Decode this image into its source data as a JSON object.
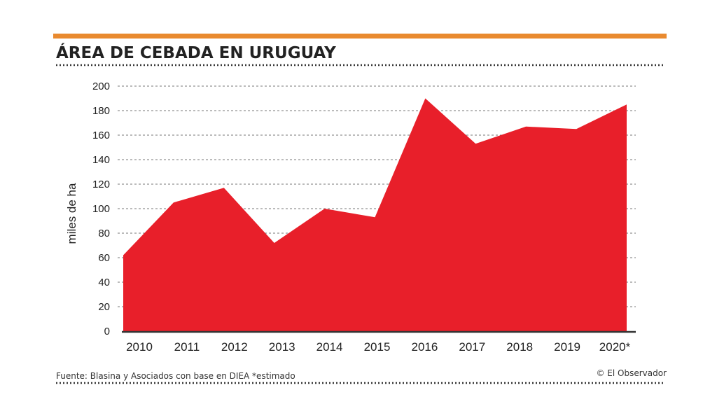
{
  "colors": {
    "accent_bar": "#E98A2F",
    "area_fill": "#E81F2A",
    "text": "#222222",
    "grid": "#777777"
  },
  "footer": {
    "source": "Fuente: Blasina y Asociados con base en DIEA *estimado",
    "credit": "© El Observador"
  },
  "chart_data": {
    "type": "area",
    "title": "ÁREA DE CEBADA EN URUGUAY",
    "xlabel": "",
    "ylabel": "miles de ha",
    "categories": [
      "2010",
      "2011",
      "2012",
      "2013",
      "2014",
      "2015",
      "2016",
      "2017",
      "2018",
      "2019",
      "2020*"
    ],
    "series": [
      {
        "name": "Área de cebada",
        "values": [
          62,
          105,
          117,
          72,
          100,
          93,
          190,
          153,
          167,
          165,
          185
        ]
      }
    ],
    "yticks": [
      0,
      20,
      40,
      60,
      80,
      100,
      120,
      140,
      160,
      180,
      200
    ],
    "ylim": [
      0,
      200
    ],
    "grid": true
  }
}
